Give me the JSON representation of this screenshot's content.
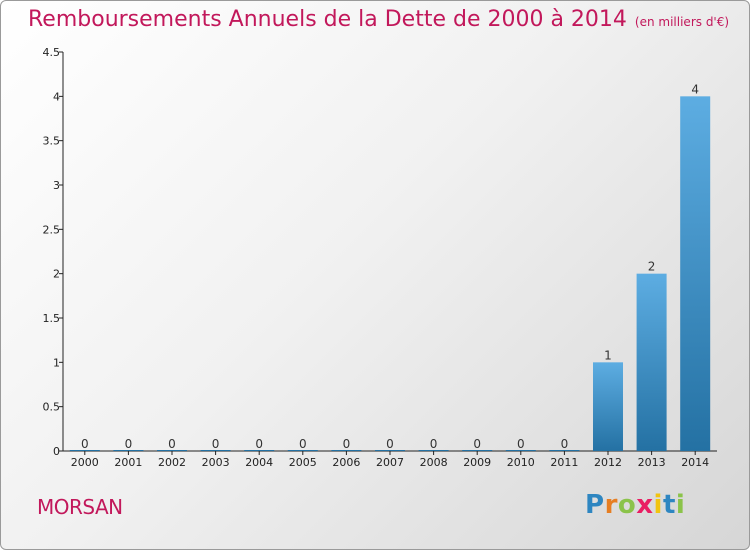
{
  "chart_data": {
    "type": "bar",
    "title": "Remboursements Annuels de la Dette de 2000 à 2014",
    "unit": "(en milliers d'€)",
    "categories": [
      "2000",
      "2001",
      "2002",
      "2003",
      "2004",
      "2005",
      "2006",
      "2007",
      "2008",
      "2009",
      "2010",
      "2011",
      "2012",
      "2013",
      "2014"
    ],
    "values": [
      0,
      0,
      0,
      0,
      0,
      0,
      0,
      0,
      0,
      0,
      0,
      0,
      1,
      2,
      4
    ],
    "yticks": [
      "0",
      "0.5",
      "1",
      "1.5",
      "2",
      "2.5",
      "3",
      "3.5",
      "4",
      "4.5"
    ],
    "ylim": [
      0,
      4.5
    ],
    "xlabel": "",
    "ylabel": "",
    "bar_color": "#3d8fd6"
  },
  "footer": {
    "commune": "MORSAN",
    "logo": "Proxiti"
  },
  "colors": {
    "accent": "#c2185b"
  }
}
